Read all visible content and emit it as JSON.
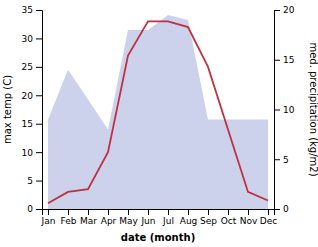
{
  "chart_data": {
    "type": "line",
    "categories": [
      "Jan",
      "Feb",
      "Mar",
      "Apr",
      "May",
      "Jun",
      "Jul",
      "Aug",
      "Sep",
      "Oct",
      "Nov",
      "Dec"
    ],
    "series": [
      {
        "type": "area",
        "axis": "y2",
        "color": "#aab4e0",
        "values": [
          9,
          14,
          11,
          8,
          18,
          18,
          19.5,
          19,
          9,
          9,
          9,
          9
        ]
      },
      {
        "type": "line",
        "color": "#c03040",
        "values": [
          1,
          3,
          3.5,
          10,
          27,
          33,
          33,
          32,
          25,
          14,
          3,
          1.5
        ]
      }
    ],
    "x_label": "date (month)",
    "y_label": "max temp (C)",
    "y2_label": "med. precipitation (kg/m2)",
    "ylim": [
      0,
      35
    ],
    "yticks": [
      0,
      5,
      10,
      15,
      20,
      25,
      30,
      35
    ],
    "y2lim": [
      0,
      20
    ],
    "y2ticks": [
      0,
      5,
      10,
      15,
      20
    ],
    "grid": false
  }
}
